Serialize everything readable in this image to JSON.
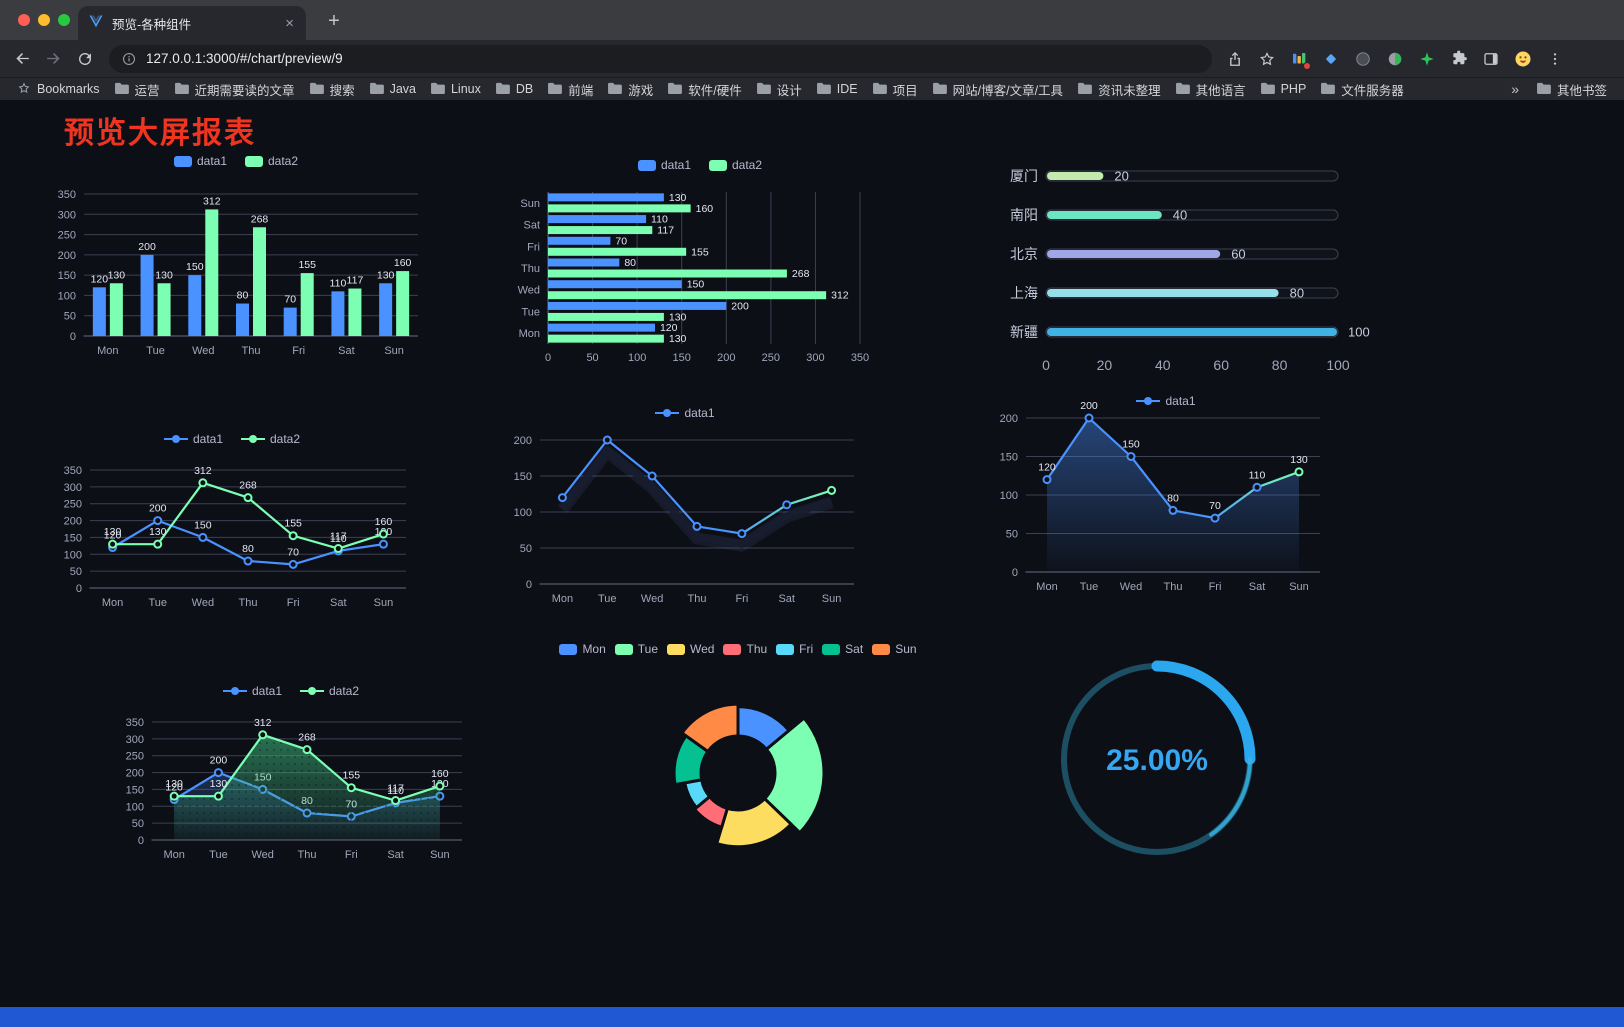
{
  "browser": {
    "tab_title": "预览-各种组件",
    "url": "127.0.0.1:3000/#/chart/preview/9",
    "icons": {
      "new_tab": "+",
      "tab_close": "×"
    },
    "bookmarks": {
      "first": "Bookmarks",
      "items": [
        "运营",
        "近期需要读的文章",
        "搜索",
        "Java",
        "Linux",
        "DB",
        "前端",
        "游戏",
        "软件/硬件",
        "设计",
        "IDE",
        "项目",
        "网站/博客/文章/工具",
        "资讯未整理",
        "其他语言",
        "PHP",
        "文件服务器"
      ],
      "overflow": "»",
      "other": "其他书签"
    }
  },
  "page": {
    "title": "预览大屏报表",
    "title_color": "#f0341f",
    "background": "#0d0f17",
    "footer_color": "#2057d2"
  },
  "chart_data": [
    {
      "id": "c1",
      "type": "bar",
      "categories": [
        "Mon",
        "Tue",
        "Wed",
        "Thu",
        "Fri",
        "Sat",
        "Sun"
      ],
      "series": [
        {
          "name": "data1",
          "color": "#4992ff",
          "values": [
            120,
            200,
            150,
            80,
            70,
            110,
            130
          ]
        },
        {
          "name": "data2",
          "color": "#7cffb2",
          "values": [
            130,
            130,
            312,
            268,
            155,
            117,
            160
          ]
        }
      ],
      "ylim": [
        0,
        350
      ],
      "ytick": 50,
      "legend": [
        {
          "label": "data1",
          "color": "#4992ff",
          "icon": "roundRect"
        },
        {
          "label": "data2",
          "color": "#7cffb2",
          "icon": "roundRect"
        }
      ]
    },
    {
      "id": "c2",
      "type": "hbar",
      "categories": [
        "Mon",
        "Tue",
        "Wed",
        "Thu",
        "Fri",
        "Sat",
        "Sun"
      ],
      "series": [
        {
          "name": "data1",
          "color": "#4992ff",
          "values": [
            120,
            200,
            150,
            80,
            70,
            110,
            130
          ]
        },
        {
          "name": "data2",
          "color": "#7cffb2",
          "values": [
            130,
            130,
            312,
            268,
            155,
            117,
            160
          ]
        }
      ],
      "xlim": [
        0,
        350
      ],
      "xtick": 50,
      "legend": [
        {
          "label": "data1",
          "color": "#4992ff",
          "icon": "roundRect"
        },
        {
          "label": "data2",
          "color": "#7cffb2",
          "icon": "roundRect"
        }
      ]
    },
    {
      "id": "c3",
      "type": "progress",
      "max": 100,
      "items": [
        {
          "label": "厦门",
          "value": 20,
          "color": "#c4ebad"
        },
        {
          "label": "南阳",
          "value": 40,
          "color": "#6be6c1"
        },
        {
          "label": "北京",
          "value": 60,
          "color": "#a0a7e6"
        },
        {
          "label": "上海",
          "value": 80,
          "color": "#96dee8"
        },
        {
          "label": "新疆",
          "value": 100,
          "color": "#3fb1e3"
        }
      ],
      "axis_ticks": [
        0,
        20,
        40,
        60,
        80,
        100
      ]
    },
    {
      "id": "c4",
      "type": "line",
      "categories": [
        "Mon",
        "Tue",
        "Wed",
        "Thu",
        "Fri",
        "Sat",
        "Sun"
      ],
      "series": [
        {
          "name": "data1",
          "color": "#4992ff",
          "values": [
            120,
            200,
            150,
            80,
            70,
            110,
            130
          ]
        },
        {
          "name": "data2",
          "color": "#7cffb2",
          "values": [
            130,
            130,
            312,
            268,
            155,
            117,
            160
          ]
        }
      ],
      "ylim": [
        0,
        350
      ],
      "ytick": 50,
      "point_labels": true,
      "legend": [
        {
          "label": "data1",
          "color": "#4992ff",
          "icon": "line"
        },
        {
          "label": "data2",
          "color": "#7cffb2",
          "icon": "line"
        }
      ]
    },
    {
      "id": "c5",
      "type": "line",
      "categories": [
        "Mon",
        "Tue",
        "Wed",
        "Thu",
        "Fri",
        "Sat",
        "Sun"
      ],
      "series": [
        {
          "name": "data1",
          "color": "#4992ff",
          "color_end": "#7cffb2",
          "values": [
            120,
            200,
            150,
            80,
            70,
            110,
            130
          ]
        }
      ],
      "ylim": [
        0,
        200
      ],
      "ytick": 50,
      "shadow": true,
      "point_labels": false,
      "legend": [
        {
          "label": "data1",
          "color": "#4992ff",
          "icon": "line"
        }
      ]
    },
    {
      "id": "c6",
      "type": "line",
      "categories": [
        "Mon",
        "Tue",
        "Wed",
        "Thu",
        "Fri",
        "Sat",
        "Sun"
      ],
      "series": [
        {
          "name": "data1",
          "color": "#4992ff",
          "color_end": "#7cffb2",
          "values": [
            120,
            200,
            150,
            80,
            70,
            110,
            130
          ],
          "area": {
            "from": "rgba(73,146,255,0.42)",
            "to": "rgba(73,146,255,0.02)"
          }
        }
      ],
      "ylim": [
        0,
        200
      ],
      "ytick": 50,
      "point_labels": true,
      "legend": [
        {
          "label": "data1",
          "color": "#4992ff",
          "icon": "line"
        }
      ]
    },
    {
      "id": "c7",
      "type": "line",
      "categories": [
        "Mon",
        "Tue",
        "Wed",
        "Thu",
        "Fri",
        "Sat",
        "Sun"
      ],
      "series": [
        {
          "name": "data1",
          "color": "#4992ff",
          "values": [
            120,
            200,
            150,
            80,
            70,
            110,
            130
          ],
          "area": {
            "from": "rgba(73,146,255,0.25)",
            "to": "rgba(73,146,255,0.02)"
          }
        },
        {
          "name": "data2",
          "color": "#7cffb2",
          "values": [
            130,
            130,
            312,
            268,
            155,
            117,
            160
          ],
          "area": {
            "from": "rgba(64,196,130,0.55)",
            "to": "rgba(64,196,130,0.06)",
            "dots": true
          }
        }
      ],
      "ylim": [
        0,
        350
      ],
      "ytick": 50,
      "point_labels": true,
      "legend": [
        {
          "label": "data1",
          "color": "#4992ff",
          "icon": "line"
        },
        {
          "label": "data2",
          "color": "#7cffb2",
          "icon": "line"
        }
      ]
    },
    {
      "id": "c8",
      "type": "rose",
      "legend": [
        {
          "label": "Mon",
          "color": "#4992ff",
          "icon": "roundRect"
        },
        {
          "label": "Tue",
          "color": "#7cffb2",
          "icon": "roundRect"
        },
        {
          "label": "Wed",
          "color": "#fddd60",
          "icon": "roundRect"
        },
        {
          "label": "Thu",
          "color": "#ff6e76",
          "icon": "roundRect"
        },
        {
          "label": "Fri",
          "color": "#58d9f9",
          "icon": "roundRect"
        },
        {
          "label": "Sat",
          "color": "#05c091",
          "icon": "roundRect"
        },
        {
          "label": "Sun",
          "color": "#ff8a45",
          "icon": "roundRect"
        }
      ],
      "segments": [
        {
          "name": "Mon",
          "value": 120,
          "color": "#4992ff"
        },
        {
          "name": "Tue",
          "value": 200,
          "color": "#7cffb2"
        },
        {
          "name": "Wed",
          "value": 150,
          "color": "#fddd60"
        },
        {
          "name": "Thu",
          "value": 80,
          "color": "#ff6e76"
        },
        {
          "name": "Fri",
          "value": 70,
          "color": "#58d9f9"
        },
        {
          "name": "Sat",
          "value": 110,
          "color": "#05c091"
        },
        {
          "name": "Sun",
          "value": 130,
          "color": "#ff8a45"
        }
      ]
    },
    {
      "id": "c9",
      "type": "gauge",
      "value": 25,
      "label": "25.00%",
      "value_color": "#35a6f2",
      "progress_color": "#2aa7ef",
      "track_color": "#1d4f63"
    }
  ]
}
